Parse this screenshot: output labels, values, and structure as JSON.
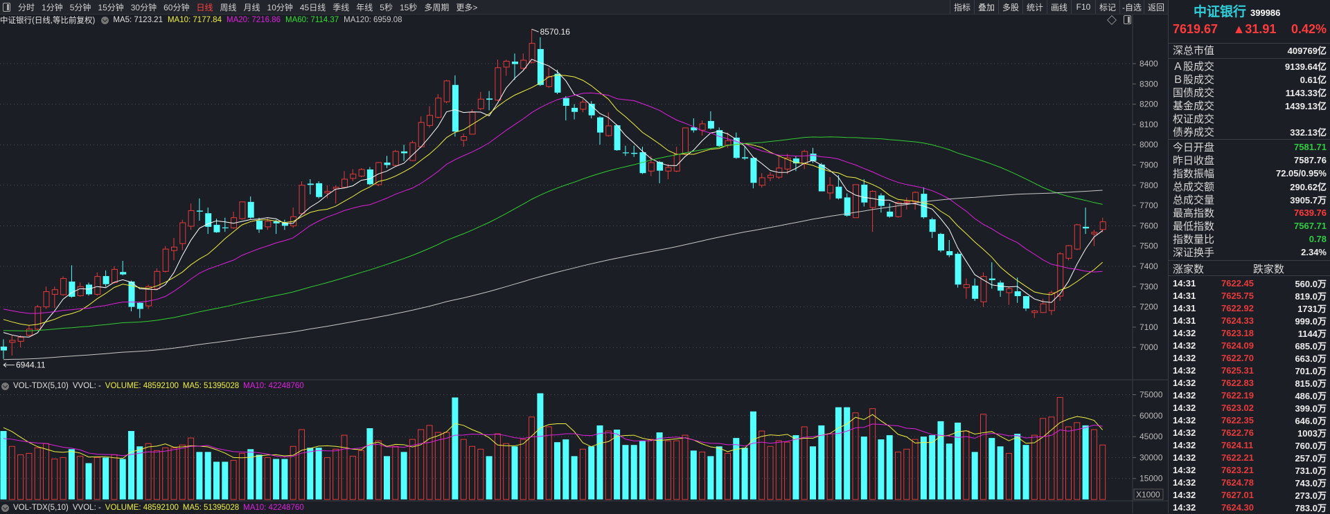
{
  "toolbar": {
    "periods": [
      "分时",
      "1分钟",
      "5分钟",
      "15分钟",
      "30分钟",
      "60分钟",
      "日线",
      "周线",
      "月线",
      "10分钟",
      "45日线",
      "季线",
      "年线",
      "5秒",
      "15秒",
      "多周期",
      "更多>"
    ],
    "active_period": "日线",
    "right_buttons": [
      "指标",
      "叠加",
      "多股",
      "统计",
      "画线",
      "F10",
      "标记",
      "-自选",
      "返回"
    ]
  },
  "chart_header": {
    "title": "中证银行(日线,等比前复权)",
    "ma5": "MA5: 7123.21",
    "ma10": "MA10: 7177.84",
    "ma20": "MA20: 7216.86",
    "ma60": "MA60: 7114.37",
    "ma120": "MA120: 6959.08"
  },
  "volume_header": {
    "name": "VOL-TDX(5,10)",
    "vvol": "VVOL: -",
    "volume": "VOLUME: 48592100",
    "ma5": "MA5: 51395028",
    "ma10": "MA10: 42248760"
  },
  "colors": {
    "up": "#e83a3a",
    "down": "#54ffff",
    "ma5": "#ffffff",
    "ma10": "#f0f040",
    "ma20": "#e020e0",
    "ma60": "#30d030",
    "ma120": "#c8c8c8"
  },
  "chart_data": {
    "type": "candlestick",
    "series_format": "[open, close, high, low]",
    "candles": [
      [
        7004,
        6985,
        7040,
        6944.11
      ],
      [
        7025,
        7035,
        7060,
        6960
      ],
      [
        7030,
        7050,
        7060,
        7000
      ],
      [
        7060,
        7090,
        7110,
        7055
      ],
      [
        7090,
        7200,
        7210,
        7085
      ],
      [
        7200,
        7275,
        7300,
        7190
      ],
      [
        7262,
        7285,
        7300,
        7195
      ],
      [
        7260,
        7340,
        7350,
        7255
      ],
      [
        7325,
        7250,
        7405,
        7245
      ],
      [
        7255,
        7300,
        7320,
        7250
      ],
      [
        7310,
        7262,
        7320,
        7255
      ],
      [
        7262,
        7350,
        7370,
        7255
      ],
      [
        7352,
        7312,
        7380,
        7300
      ],
      [
        7320,
        7385,
        7400,
        7315
      ],
      [
        7372,
        7360,
        7427,
        7355
      ],
      [
        7325,
        7200,
        7330,
        7178
      ],
      [
        7220,
        7190,
        7225,
        7145
      ],
      [
        7205,
        7300,
        7310,
        7190
      ],
      [
        7290,
        7375,
        7390,
        7285
      ],
      [
        7375,
        7485,
        7500,
        7370
      ],
      [
        7478,
        7495,
        7540,
        7430
      ],
      [
        7512,
        7615,
        7630,
        7480
      ],
      [
        7598,
        7675,
        7710,
        7580
      ],
      [
        7675,
        7670,
        7735,
        7625
      ],
      [
        7662,
        7595,
        7690,
        7560
      ],
      [
        7605,
        7568,
        7635,
        7565
      ],
      [
        7592,
        7588,
        7640,
        7570
      ],
      [
        7590,
        7640,
        7670,
        7585
      ],
      [
        7635,
        7718,
        7720,
        7630
      ],
      [
        7718,
        7640,
        7745,
        7635
      ],
      [
        7625,
        7582,
        7640,
        7565
      ],
      [
        7595,
        7622,
        7640,
        7580
      ],
      [
        7622,
        7612,
        7630,
        7560
      ],
      [
        7615,
        7600,
        7630,
        7580
      ],
      [
        7600,
        7645,
        7690,
        7590
      ],
      [
        7660,
        7800,
        7820,
        7655
      ],
      [
        7808,
        7802,
        7830,
        7755
      ],
      [
        7810,
        7742,
        7820,
        7735
      ],
      [
        7762,
        7770,
        7800,
        7735
      ],
      [
        7782,
        7790,
        7800,
        7710
      ],
      [
        7790,
        7830,
        7870,
        7785
      ],
      [
        7834,
        7855,
        7880,
        7820
      ],
      [
        7845,
        7878,
        7885,
        7840
      ],
      [
        7878,
        7805,
        7890,
        7800
      ],
      [
        7803,
        7912,
        7915,
        7795
      ],
      [
        7912,
        7900,
        7945,
        7885
      ],
      [
        7898,
        7967,
        7975,
        7895
      ],
      [
        7967,
        7958,
        8000,
        7920
      ],
      [
        7922,
        8010,
        8020,
        7920
      ],
      [
        7990,
        8110,
        8140,
        7985
      ],
      [
        8095,
        8145,
        8190,
        8085
      ],
      [
        8135,
        8230,
        8250,
        8130
      ],
      [
        8212,
        8315,
        8320,
        8205
      ],
      [
        8295,
        8065,
        8342,
        8040
      ],
      [
        8022,
        8040,
        8055,
        7990
      ],
      [
        8052,
        8160,
        8175,
        8050
      ],
      [
        8178,
        8225,
        8260,
        8170
      ],
      [
        8228,
        8222,
        8265,
        8170
      ],
      [
        8220,
        8380,
        8420,
        8215
      ],
      [
        8383,
        8412,
        8420,
        8340
      ],
      [
        8410,
        8398,
        8450,
        8320
      ],
      [
        8377,
        8417,
        8450,
        8370
      ],
      [
        8407,
        8500,
        8570.16,
        8400
      ],
      [
        8472,
        8295,
        8530,
        8290
      ],
      [
        8287,
        8335,
        8380,
        8280
      ],
      [
        8350,
        8257,
        8370,
        8250
      ],
      [
        8230,
        8192,
        8240,
        8120
      ],
      [
        8182,
        8162,
        8200,
        8125
      ],
      [
        8175,
        8210,
        8225,
        8160
      ],
      [
        8202,
        8145,
        8215,
        8130
      ],
      [
        8135,
        8060,
        8140,
        8000
      ],
      [
        8045,
        8093,
        8160,
        8040
      ],
      [
        8096,
        7973,
        8100,
        7970
      ],
      [
        7962,
        7958,
        7995,
        7945
      ],
      [
        7960,
        7955,
        7995,
        7940
      ],
      [
        7963,
        7860,
        7990,
        7855
      ],
      [
        7870,
        7912,
        7945,
        7845
      ],
      [
        7915,
        7872,
        7920,
        7810
      ],
      [
        7870,
        7888,
        7905,
        7830
      ],
      [
        7870,
        7953,
        7990,
        7865
      ],
      [
        7953,
        8083,
        8085,
        7950
      ],
      [
        8086,
        8071,
        8130,
        8060
      ],
      [
        8072,
        8103,
        8120,
        8045
      ],
      [
        8117,
        8080,
        8165,
        8075
      ],
      [
        8072,
        7994,
        8085,
        7990
      ],
      [
        7998,
        8020,
        8060,
        7985
      ],
      [
        8035,
        7935,
        8060,
        7930
      ],
      [
        7938,
        7932,
        7990,
        7925
      ],
      [
        7935,
        7812,
        7940,
        7785
      ],
      [
        7800,
        7837,
        7860,
        7788
      ],
      [
        7837,
        7850,
        7865,
        7820
      ],
      [
        7840,
        7885,
        7940,
        7830
      ],
      [
        7880,
        7935,
        7955,
        7855
      ],
      [
        7932,
        7908,
        7945,
        7870
      ],
      [
        7905,
        7967,
        7975,
        7880
      ],
      [
        7956,
        7920,
        7985,
        7910
      ],
      [
        7902,
        7770,
        7910,
        7770
      ],
      [
        7762,
        7800,
        7840,
        7730
      ],
      [
        7793,
        7735,
        7850,
        7730
      ],
      [
        7740,
        7650,
        7760,
        7645
      ],
      [
        7640,
        7803,
        7805,
        7640
      ],
      [
        7803,
        7715,
        7830,
        7695
      ],
      [
        7690,
        7770,
        7775,
        7570
      ],
      [
        7750,
        7698,
        7760,
        7665
      ],
      [
        7670,
        7645,
        7710,
        7640
      ],
      [
        7645,
        7715,
        7720,
        7640
      ],
      [
        7715,
        7720,
        7740,
        7680
      ],
      [
        7718,
        7765,
        7770,
        7680
      ],
      [
        7758,
        7642,
        7790,
        7635
      ],
      [
        7632,
        7570,
        7640,
        7540
      ],
      [
        7560,
        7478,
        7565,
        7470
      ],
      [
        7475,
        7455,
        7530,
        7445
      ],
      [
        7462,
        7310,
        7470,
        7295
      ],
      [
        7295,
        7310,
        7340,
        7240
      ],
      [
        7305,
        7240,
        7340,
        7230
      ],
      [
        7225,
        7350,
        7370,
        7200
      ],
      [
        7340,
        7332,
        7420,
        7290
      ],
      [
        7320,
        7280,
        7330,
        7250
      ],
      [
        7270,
        7290,
        7300,
        7210
      ],
      [
        7277,
        7253,
        7345,
        7220
      ],
      [
        7253,
        7192,
        7255,
        7180
      ],
      [
        7172,
        7180,
        7185,
        7145
      ],
      [
        7172,
        7215,
        7240,
        7170
      ],
      [
        7182,
        7270,
        7280,
        7160
      ],
      [
        7253,
        7462,
        7470,
        7230
      ],
      [
        7440,
        7502,
        7505,
        7430
      ],
      [
        7485,
        7605,
        7610,
        7480
      ],
      [
        7595,
        7587,
        7690,
        7560
      ],
      [
        7560,
        7568,
        7580,
        7500
      ],
      [
        7581.71,
        7619.67,
        7639.76,
        7567.71
      ]
    ],
    "volume_thousands": [
      49,
      38,
      32,
      33,
      37,
      40,
      29,
      30,
      36,
      31,
      26,
      30,
      30,
      32,
      29,
      49,
      38,
      40,
      35,
      37,
      37,
      39,
      44,
      34,
      34,
      27,
      27,
      28,
      33,
      36,
      32,
      30,
      29,
      29,
      38,
      50,
      37,
      37,
      30,
      36,
      46,
      31,
      35,
      51,
      42,
      31,
      38,
      34,
      43,
      50,
      53,
      48,
      48,
      73,
      43,
      38,
      36,
      31,
      47,
      40,
      38,
      43,
      59,
      76,
      52,
      41,
      43,
      31,
      36,
      38,
      53,
      49,
      50,
      39,
      39,
      42,
      43,
      48,
      42,
      42,
      46,
      35,
      34,
      31,
      38,
      33,
      44,
      37,
      63,
      49,
      38,
      42,
      41,
      46,
      52,
      38,
      53,
      47,
      66,
      66,
      62,
      45,
      65,
      43,
      46,
      34,
      36,
      43,
      45,
      46,
      56,
      40,
      55,
      49,
      34,
      61,
      44,
      38,
      33,
      47,
      39,
      46,
      58,
      59,
      73,
      52,
      55,
      53,
      50,
      39
    ],
    "ma_periods": [
      5,
      10,
      20,
      60,
      120
    ],
    "ma_start_values": {
      "5": 7096,
      "10": 7155,
      "20": 7200,
      "60": 7085,
      "120": 6940
    },
    "vol_ma_start_values": {
      "5": 52,
      "10": 43
    },
    "price_ticks": [
      "8400",
      "8300",
      "8200",
      "8100",
      "8000",
      "7900",
      "7800",
      "7700",
      "7600",
      "7500",
      "7400",
      "7300",
      "7200",
      "7100",
      "7000"
    ],
    "price_range": [
      6850,
      8600
    ],
    "volume_ticks": [
      "75000",
      "60000",
      "45000",
      "30000",
      "15000"
    ],
    "volume_unit": "X1000",
    "high_label": "8570.16",
    "low_label": "6944.11",
    "high_index": 62,
    "low_index": 0
  },
  "side": {
    "name": "中证银行",
    "code": "399986",
    "price": "7619.67",
    "change": "▲31.91",
    "pct": "0.42%",
    "group1": [
      {
        "label": "深总市值",
        "value": "409769亿"
      }
    ],
    "group2": [
      {
        "label": "Ａ股成交",
        "value": "9139.64亿"
      },
      {
        "label": "Ｂ股成交",
        "value": "0.61亿"
      },
      {
        "label": "国债成交",
        "value": "1143.33亿"
      },
      {
        "label": "基金成交",
        "value": "1439.13亿"
      },
      {
        "label": "权证成交",
        "value": ""
      },
      {
        "label": "债券成交",
        "value": "332.13亿"
      }
    ],
    "group3": [
      {
        "label": "今日开盘",
        "value": "7581.71",
        "color": "green"
      },
      {
        "label": "昨日收盘",
        "value": "7587.76",
        "color": ""
      },
      {
        "label": "指数振幅",
        "value": "72.05/0.95%",
        "color": ""
      },
      {
        "label": "总成交额",
        "value": "290.62亿",
        "color": ""
      },
      {
        "label": "总成交量",
        "value": "3905.7万",
        "color": ""
      },
      {
        "label": "最高指数",
        "value": "7639.76",
        "color": "red"
      },
      {
        "label": "最低指数",
        "value": "7567.71",
        "color": "green"
      },
      {
        "label": "指数量比",
        "value": "0.78",
        "color": "green"
      },
      {
        "label": "深证换手",
        "value": "2.34%",
        "color": ""
      }
    ],
    "up_count_label": "涨家数",
    "down_count_label": "跌家数",
    "trades": [
      [
        "14:31",
        "7622.45",
        "560.0万"
      ],
      [
        "14:31",
        "7625.75",
        "819.0万"
      ],
      [
        "14:31",
        "7622.92",
        "1731万"
      ],
      [
        "14:31",
        "7624.33",
        "999.0万"
      ],
      [
        "14:32",
        "7623.18",
        "1144万"
      ],
      [
        "14:32",
        "7624.09",
        "685.0万"
      ],
      [
        "14:32",
        "7622.70",
        "663.0万"
      ],
      [
        "14:32",
        "7625.31",
        "701.0万"
      ],
      [
        "14:32",
        "7622.83",
        "815.0万"
      ],
      [
        "14:32",
        "7622.19",
        "486.0万"
      ],
      [
        "14:32",
        "7623.02",
        "399.0万"
      ],
      [
        "14:32",
        "7622.35",
        "646.0万"
      ],
      [
        "14:32",
        "7622.76",
        "1003万"
      ],
      [
        "14:32",
        "7624.11",
        "760.0万"
      ],
      [
        "14:32",
        "7622.21",
        "257.0万"
      ],
      [
        "14:32",
        "7623.21",
        "731.0万"
      ],
      [
        "14:32",
        "7624.78",
        "743.0万"
      ],
      [
        "14:32",
        "7627.01",
        "273.0万"
      ],
      [
        "14:32",
        "7624.30",
        "783.0万"
      ]
    ]
  }
}
